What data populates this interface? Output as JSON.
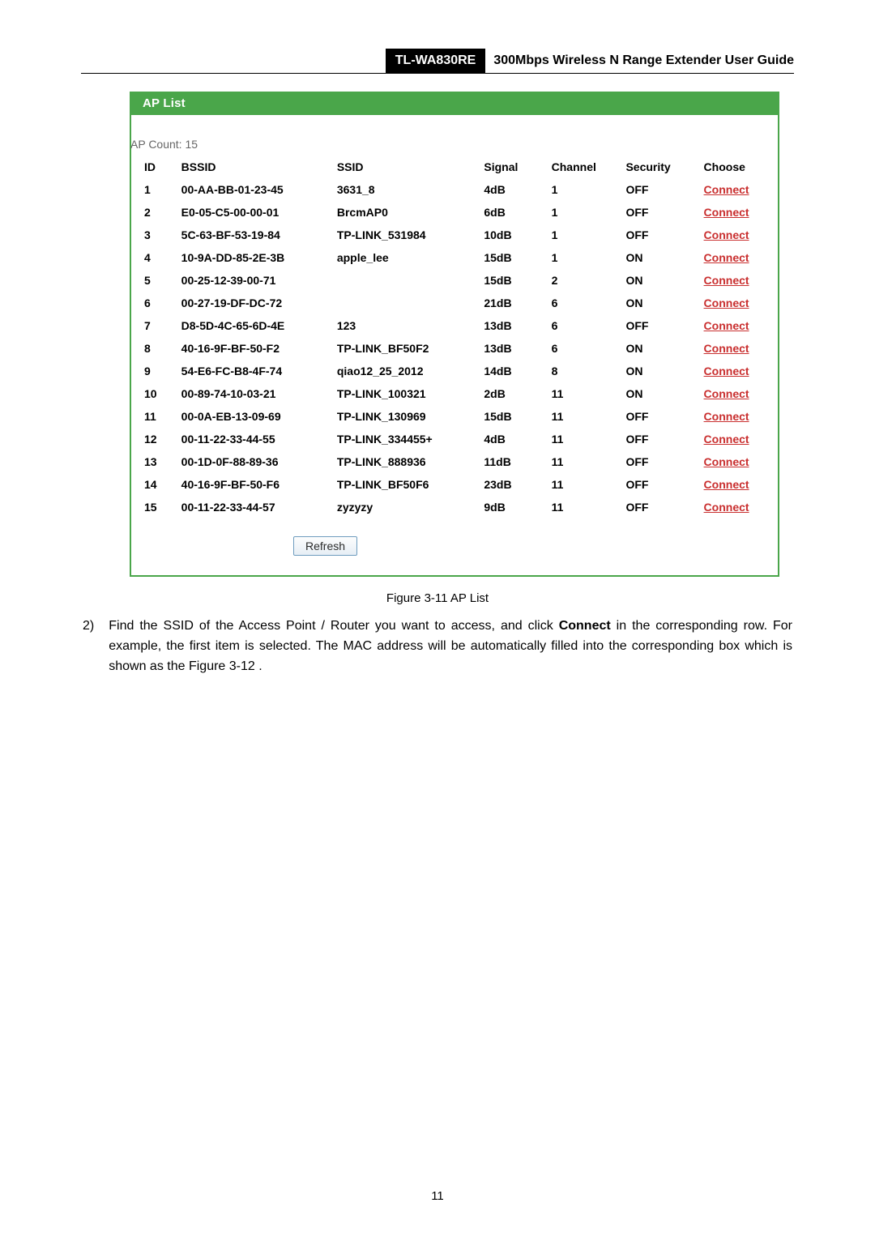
{
  "header": {
    "model": "TL-WA830RE",
    "title": "300Mbps Wireless N Range Extender User Guide"
  },
  "panel": {
    "title": "AP List",
    "countLabel": "AP Count: 15",
    "columns": {
      "id": "ID",
      "bssid": "BSSID",
      "ssid": "SSID",
      "signal": "Signal",
      "channel": "Channel",
      "security": "Security",
      "choose": "Choose"
    },
    "connectLabel": "Connect",
    "refreshLabel": "Refresh",
    "rows": [
      {
        "id": "1",
        "bssid": "00-AA-BB-01-23-45",
        "ssid": "3631_8",
        "signal": "4dB",
        "channel": "1",
        "security": "OFF"
      },
      {
        "id": "2",
        "bssid": "E0-05-C5-00-00-01",
        "ssid": "BrcmAP0",
        "signal": "6dB",
        "channel": "1",
        "security": "OFF"
      },
      {
        "id": "3",
        "bssid": "5C-63-BF-53-19-84",
        "ssid": "TP-LINK_531984",
        "signal": "10dB",
        "channel": "1",
        "security": "OFF"
      },
      {
        "id": "4",
        "bssid": "10-9A-DD-85-2E-3B",
        "ssid": "apple_lee",
        "signal": "15dB",
        "channel": "1",
        "security": "ON"
      },
      {
        "id": "5",
        "bssid": "00-25-12-39-00-71",
        "ssid": "",
        "signal": "15dB",
        "channel": "2",
        "security": "ON"
      },
      {
        "id": "6",
        "bssid": "00-27-19-DF-DC-72",
        "ssid": "",
        "signal": "21dB",
        "channel": "6",
        "security": "ON"
      },
      {
        "id": "7",
        "bssid": "D8-5D-4C-65-6D-4E",
        "ssid": "123",
        "signal": "13dB",
        "channel": "6",
        "security": "OFF"
      },
      {
        "id": "8",
        "bssid": "40-16-9F-BF-50-F2",
        "ssid": "TP-LINK_BF50F2",
        "signal": "13dB",
        "channel": "6",
        "security": "ON"
      },
      {
        "id": "9",
        "bssid": "54-E6-FC-B8-4F-74",
        "ssid": "qiao12_25_2012",
        "signal": "14dB",
        "channel": "8",
        "security": "ON"
      },
      {
        "id": "10",
        "bssid": "00-89-74-10-03-21",
        "ssid": "TP-LINK_100321",
        "signal": "2dB",
        "channel": "11",
        "security": "ON"
      },
      {
        "id": "11",
        "bssid": "00-0A-EB-13-09-69",
        "ssid": "TP-LINK_130969",
        "signal": "15dB",
        "channel": "11",
        "security": "OFF"
      },
      {
        "id": "12",
        "bssid": "00-11-22-33-44-55",
        "ssid": "TP-LINK_334455+",
        "signal": "4dB",
        "channel": "11",
        "security": "OFF"
      },
      {
        "id": "13",
        "bssid": "00-1D-0F-88-89-36",
        "ssid": "TP-LINK_888936",
        "signal": "11dB",
        "channel": "11",
        "security": "OFF"
      },
      {
        "id": "14",
        "bssid": "40-16-9F-BF-50-F6",
        "ssid": "TP-LINK_BF50F6",
        "signal": "23dB",
        "channel": "11",
        "security": "OFF"
      },
      {
        "id": "15",
        "bssid": "00-11-22-33-44-57",
        "ssid": "zyzyzy",
        "signal": "9dB",
        "channel": "11",
        "security": "OFF"
      }
    ]
  },
  "figure": {
    "caption": "Figure 3-11 AP List"
  },
  "step": {
    "num": "2)",
    "pre": "Find the SSID of the Access Point / Router you want to access, and click ",
    "connectWord": "Connect",
    "post": " in the corresponding row. For example, the first item is selected. The MAC address will be automatically filled into the corresponding box which is shown as the Figure 3-12 ."
  },
  "pageNumber": "11",
  "colors": {
    "panelGreen": "#4aa64a",
    "linkRed": "#c92f2f",
    "buttonBorder": "#6f9dbf"
  }
}
